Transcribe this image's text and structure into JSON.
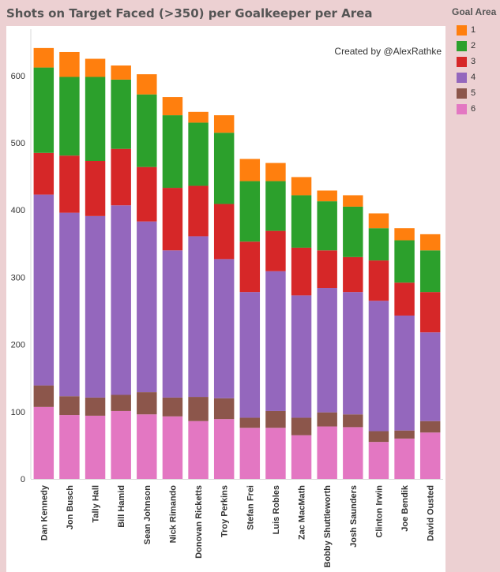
{
  "title": "Shots on Target Faced (>350) per Goalkeeper per Area",
  "annotation": "Created by @AlexRathke",
  "legend": {
    "title": "Goal Area",
    "items": [
      {
        "label": "1",
        "color": "#ff7f0e"
      },
      {
        "label": "2",
        "color": "#2ca02c"
      },
      {
        "label": "3",
        "color": "#d62728"
      },
      {
        "label": "4",
        "color": "#9467bd"
      },
      {
        "label": "5",
        "color": "#8c564b"
      },
      {
        "label": "6",
        "color": "#e377c2"
      }
    ]
  },
  "chart_data": {
    "type": "bar",
    "stacked": true,
    "title": "Shots on Target Faced (>350) per Goalkeeper per Area",
    "xlabel": "",
    "ylabel": "",
    "ylim": [
      0,
      700
    ],
    "yticks": [
      0,
      100,
      200,
      300,
      400,
      500,
      600
    ],
    "grid": false,
    "legend_position": "right",
    "categories": [
      "Dan Kennedy",
      "Jon Busch",
      "Tally Hall",
      "Bill Hamid",
      "Sean Johnson",
      "Nick Rimando",
      "Donovan Ricketts",
      "Troy Perkins",
      "Stefan Frei",
      "Luis Robles",
      "Zac MacMath",
      "Bobby Shuttleworth",
      "Josh Saunders",
      "Clinton Irwin",
      "Joe Bendik",
      "David Ousted"
    ],
    "series": [
      {
        "name": "6",
        "color": "#e377c2",
        "values": [
          107,
          95,
          94,
          101,
          96,
          93,
          86,
          89,
          76,
          76,
          65,
          78,
          77,
          55,
          60,
          69
        ]
      },
      {
        "name": "5",
        "color": "#8c564b",
        "values": [
          32,
          28,
          27,
          24,
          33,
          28,
          36,
          31,
          15,
          25,
          26,
          21,
          19,
          16,
          12,
          17
        ]
      },
      {
        "name": "4",
        "color": "#9467bd",
        "values": [
          284,
          273,
          270,
          282,
          254,
          219,
          239,
          207,
          187,
          208,
          182,
          185,
          182,
          194,
          171,
          132
        ]
      },
      {
        "name": "3",
        "color": "#d62728",
        "values": [
          62,
          85,
          82,
          84,
          81,
          93,
          75,
          82,
          75,
          60,
          71,
          56,
          52,
          60,
          49,
          60
        ]
      },
      {
        "name": "2",
        "color": "#2ca02c",
        "values": [
          127,
          117,
          125,
          103,
          108,
          108,
          94,
          106,
          90,
          74,
          78,
          73,
          75,
          48,
          63,
          62
        ]
      },
      {
        "name": "1",
        "color": "#ff7f0e",
        "values": [
          29,
          37,
          27,
          21,
          30,
          27,
          16,
          26,
          33,
          27,
          27,
          16,
          17,
          22,
          18,
          24
        ]
      }
    ]
  }
}
